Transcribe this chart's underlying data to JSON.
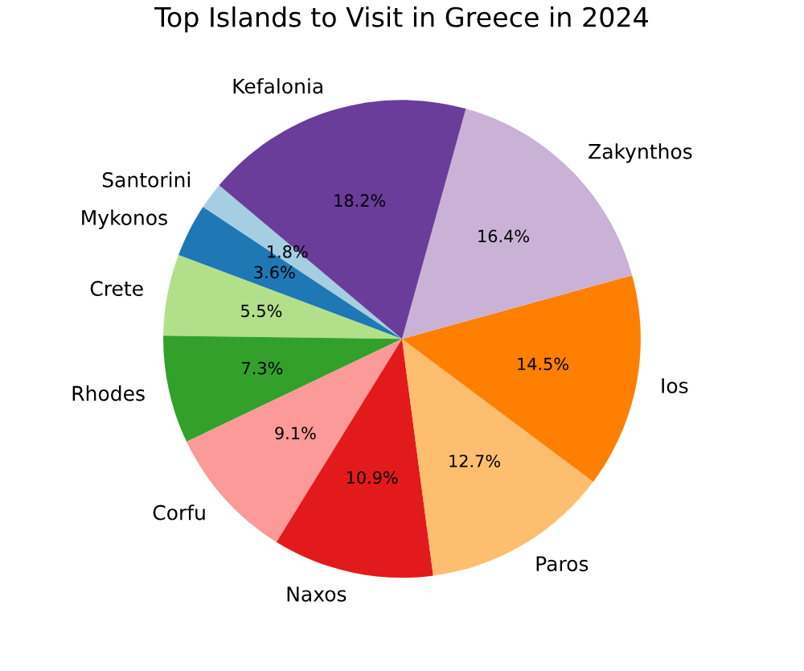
{
  "chart_data": {
    "type": "pie",
    "title": "Top Islands to Visit in Greece in 2024",
    "categories": [
      "Santorini",
      "Mykonos",
      "Crete",
      "Rhodes",
      "Corfu",
      "Naxos",
      "Paros",
      "Ios",
      "Zakynthos",
      "Kefalonia"
    ],
    "values": [
      1.8,
      3.6,
      5.5,
      7.3,
      9.1,
      10.9,
      12.7,
      14.5,
      16.4,
      18.2
    ],
    "value_labels": [
      "1.8%",
      "3.6%",
      "5.5%",
      "7.3%",
      "9.1%",
      "10.9%",
      "12.7%",
      "14.5%",
      "16.4%",
      "18.2%"
    ],
    "colors": [
      "#a6cee3",
      "#1f78b4",
      "#b2df8a",
      "#33a02c",
      "#fb9a99",
      "#e31a1c",
      "#fdbf6f",
      "#ff7f00",
      "#cab2d6",
      "#6a3d9a"
    ],
    "legend": false
  }
}
